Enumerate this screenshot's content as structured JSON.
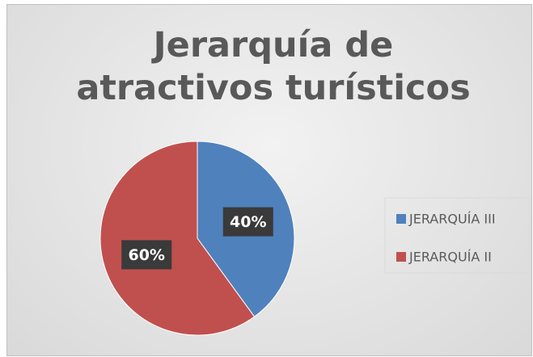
{
  "chart_data": {
    "type": "pie",
    "title": "Jerarquía de atractivos turísticos",
    "categories": [
      "JERARQUÍA III",
      "JERARQUÍA II"
    ],
    "values": [
      40,
      60
    ],
    "value_labels": [
      "40%",
      "60%"
    ],
    "colors": [
      "#4f81bd",
      "#c0504d"
    ],
    "legend": "right"
  }
}
